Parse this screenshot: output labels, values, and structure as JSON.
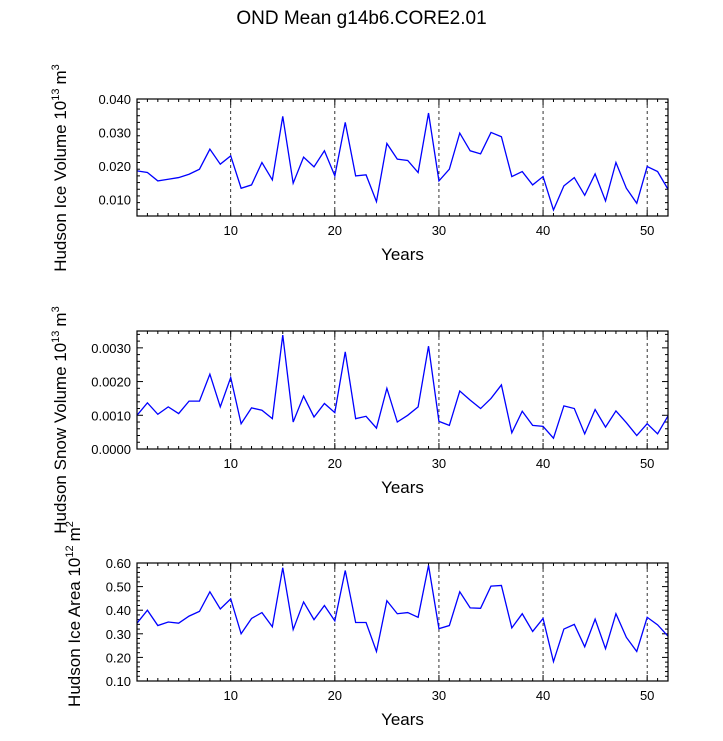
{
  "title": "OND Mean g14b6.CORE2.01",
  "chart_data": [
    {
      "type": "line",
      "title": "",
      "xlabel": "Years",
      "ylabel": "Hudson Ice Volume",
      "yunit_base": "10",
      "yunit_exp": "13",
      "yunit_sym": "m",
      "yunit_sup": "3",
      "xlim": [
        1,
        52
      ],
      "ylim": [
        0.005,
        0.04
      ],
      "xticks": [
        10,
        20,
        30,
        40,
        50
      ],
      "xtick_labels": [
        "10",
        "20",
        "30",
        "40",
        "50"
      ],
      "yticks": [
        0.01,
        0.02,
        0.03,
        0.04
      ],
      "ytick_labels": [
        "0.010",
        "0.020",
        "0.030",
        "0.040"
      ],
      "color": "#0000ff",
      "gridlines_x": [
        10,
        20,
        30,
        40,
        50
      ],
      "x": [
        1,
        2,
        3,
        4,
        5,
        6,
        7,
        8,
        9,
        10,
        11,
        12,
        13,
        14,
        15,
        16,
        17,
        18,
        19,
        20,
        21,
        22,
        23,
        24,
        25,
        26,
        27,
        28,
        29,
        30,
        31,
        32,
        33,
        34,
        35,
        36,
        37,
        38,
        39,
        40,
        41,
        42,
        43,
        44,
        45,
        46,
        47,
        48,
        49,
        50,
        51,
        52
      ],
      "values": [
        0.0185,
        0.018,
        0.0155,
        0.016,
        0.0165,
        0.0175,
        0.019,
        0.025,
        0.0205,
        0.023,
        0.0133,
        0.0143,
        0.021,
        0.0158,
        0.0348,
        0.0148,
        0.0226,
        0.0197,
        0.0245,
        0.017,
        0.033,
        0.017,
        0.0173,
        0.0093,
        0.0267,
        0.022,
        0.0216,
        0.018,
        0.0358,
        0.0155,
        0.019,
        0.0298,
        0.0245,
        0.0236,
        0.03,
        0.0287,
        0.0168,
        0.0183,
        0.0143,
        0.0168,
        0.0068,
        0.014,
        0.0165,
        0.0112,
        0.0176,
        0.0095,
        0.021,
        0.0133,
        0.0088,
        0.0198,
        0.0183,
        0.013
      ]
    },
    {
      "type": "line",
      "title": "",
      "xlabel": "Years",
      "ylabel": "Hudson Snow Volume",
      "yunit_base": "10",
      "yunit_exp": "13",
      "yunit_sym": "m",
      "yunit_sup": "3",
      "xlim": [
        1,
        52
      ],
      "ylim": [
        0.0,
        0.0035
      ],
      "xticks": [
        10,
        20,
        30,
        40,
        50
      ],
      "xtick_labels": [
        "10",
        "20",
        "30",
        "40",
        "50"
      ],
      "yticks": [
        0.0,
        0.001,
        0.002,
        0.003
      ],
      "ytick_labels": [
        "0.0000",
        "0.0010",
        "0.0020",
        "0.0030"
      ],
      "color": "#0000ff",
      "gridlines_x": [
        10,
        20,
        30,
        40,
        50
      ],
      "x": [
        1,
        2,
        3,
        4,
        5,
        6,
        7,
        8,
        9,
        10,
        11,
        12,
        13,
        14,
        15,
        16,
        17,
        18,
        19,
        20,
        21,
        22,
        23,
        24,
        25,
        26,
        27,
        28,
        29,
        30,
        31,
        32,
        33,
        34,
        35,
        36,
        37,
        38,
        39,
        40,
        41,
        42,
        43,
        44,
        45,
        46,
        47,
        48,
        49,
        50,
        51,
        52
      ],
      "values": [
        0.001,
        0.00137,
        0.00103,
        0.00125,
        0.00105,
        0.00142,
        0.00142,
        0.00222,
        0.00125,
        0.00212,
        0.00075,
        0.00122,
        0.00115,
        0.0009,
        0.00338,
        0.0008,
        0.00157,
        0.00095,
        0.00135,
        0.00108,
        0.00288,
        0.0009,
        0.00097,
        0.00062,
        0.0018,
        0.0008,
        0.001,
        0.00125,
        0.00305,
        0.00082,
        0.0007,
        0.00172,
        0.00145,
        0.0012,
        0.0015,
        0.0019,
        0.00048,
        0.00112,
        0.0007,
        0.00067,
        0.00032,
        0.00128,
        0.0012,
        0.00045,
        0.00117,
        0.00065,
        0.00113,
        0.00078,
        0.0004,
        0.00075,
        0.00045,
        0.00098
      ]
    },
    {
      "type": "line",
      "title": "",
      "xlabel": "Years",
      "ylabel": "Hudson Ice Area",
      "yunit_base": "10",
      "yunit_exp": "12",
      "yunit_sym": "m",
      "yunit_sup": "2",
      "xlim": [
        1,
        52
      ],
      "ylim": [
        0.1,
        0.6
      ],
      "xticks": [
        10,
        20,
        30,
        40,
        50
      ],
      "xtick_labels": [
        "10",
        "20",
        "30",
        "40",
        "50"
      ],
      "yticks": [
        0.1,
        0.2,
        0.3,
        0.4,
        0.5,
        0.6
      ],
      "ytick_labels": [
        "0.10",
        "0.20",
        "0.30",
        "0.40",
        "0.50",
        "0.60"
      ],
      "color": "#0000ff",
      "gridlines_x": [
        10,
        20,
        30,
        40,
        50
      ],
      "x": [
        1,
        2,
        3,
        4,
        5,
        6,
        7,
        8,
        9,
        10,
        11,
        12,
        13,
        14,
        15,
        16,
        17,
        18,
        19,
        20,
        21,
        22,
        23,
        24,
        25,
        26,
        27,
        28,
        29,
        30,
        31,
        32,
        33,
        34,
        35,
        36,
        37,
        38,
        39,
        40,
        41,
        42,
        43,
        44,
        45,
        46,
        47,
        48,
        49,
        50,
        51,
        52
      ],
      "values": [
        0.345,
        0.4,
        0.335,
        0.35,
        0.345,
        0.375,
        0.395,
        0.478,
        0.405,
        0.448,
        0.3,
        0.365,
        0.39,
        0.33,
        0.58,
        0.318,
        0.435,
        0.36,
        0.42,
        0.355,
        0.568,
        0.348,
        0.348,
        0.225,
        0.44,
        0.385,
        0.39,
        0.37,
        0.59,
        0.322,
        0.335,
        0.478,
        0.41,
        0.408,
        0.502,
        0.505,
        0.325,
        0.385,
        0.31,
        0.365,
        0.182,
        0.32,
        0.34,
        0.245,
        0.362,
        0.237,
        0.385,
        0.285,
        0.225,
        0.37,
        0.338,
        0.29
      ]
    }
  ]
}
